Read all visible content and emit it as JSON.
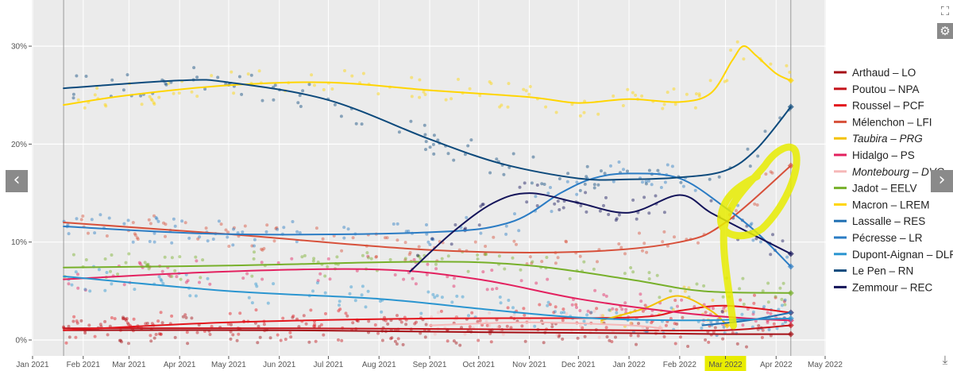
{
  "chart_data": {
    "type": "line",
    "title": "",
    "xlabel": "",
    "ylabel": "",
    "ylim": [
      0,
      33
    ],
    "x_range": [
      "2021-01-01",
      "2022-05-01"
    ],
    "grid": true,
    "legend_position": "right",
    "x_ticks": [
      "Jan 2021",
      "Feb 2021",
      "Mar 2021",
      "Apr 2021",
      "May 2021",
      "Jun 2021",
      "Jul 2021",
      "Aug 2021",
      "Sep 2021",
      "Oct 2021",
      "Nov 2021",
      "Dec 2021",
      "Jan 2022",
      "Feb 2022",
      "Mar 2022",
      "Apr 2022",
      "May 2022"
    ],
    "y_ticks": [
      0,
      10,
      20,
      30
    ],
    "y_tick_labels": [
      "0%",
      "10%",
      "20%",
      "30%"
    ],
    "reference_lines": [
      "2021-01-20",
      "2022-04-10"
    ],
    "series": [
      {
        "name": "Arthaud – LO",
        "color": "#a50f15",
        "italic": false,
        "points": [
          [
            "2021-01-20",
            1.0
          ],
          [
            "2021-06-01",
            1.0
          ],
          [
            "2021-10-01",
            0.8
          ],
          [
            "2022-01-01",
            0.7
          ],
          [
            "2022-03-01",
            0.6
          ],
          [
            "2022-04-10",
            0.6
          ]
        ]
      },
      {
        "name": "Poutou – NPA",
        "color": "#c4141b",
        "italic": false,
        "points": [
          [
            "2021-01-20",
            1.2
          ],
          [
            "2021-06-01",
            1.2
          ],
          [
            "2021-10-01",
            1.1
          ],
          [
            "2022-01-01",
            1.0
          ],
          [
            "2022-03-01",
            1.0
          ],
          [
            "2022-04-10",
            1.5
          ]
        ]
      },
      {
        "name": "Roussel – PCF",
        "color": "#e3161d",
        "italic": false,
        "points": [
          [
            "2021-01-20",
            1.0
          ],
          [
            "2021-05-01",
            1.8
          ],
          [
            "2021-09-01",
            2.2
          ],
          [
            "2022-01-01",
            2.3
          ],
          [
            "2022-02-01",
            3.0
          ],
          [
            "2022-03-01",
            3.5
          ],
          [
            "2022-04-10",
            2.8
          ]
        ]
      },
      {
        "name": "Mélenchon – LFI",
        "color": "#d7503a",
        "italic": false,
        "points": [
          [
            "2021-01-20",
            12.0
          ],
          [
            "2021-05-01",
            10.8
          ],
          [
            "2021-09-01",
            9.2
          ],
          [
            "2021-12-01",
            9.0
          ],
          [
            "2022-02-01",
            10.0
          ],
          [
            "2022-03-01",
            12.0
          ],
          [
            "2022-04-10",
            17.8
          ]
        ]
      },
      {
        "name": "Taubira – PRG",
        "color": "#f3c200",
        "italic": true,
        "points": [
          [
            "2021-12-15",
            2.0
          ],
          [
            "2022-01-10",
            3.2
          ],
          [
            "2022-01-31",
            4.5
          ],
          [
            "2022-02-20",
            3.0
          ],
          [
            "2022-03-02",
            1.5
          ]
        ]
      },
      {
        "name": "Hidalgo – PS",
        "color": "#e3215f",
        "italic": false,
        "points": [
          [
            "2021-01-20",
            6.2
          ],
          [
            "2021-05-01",
            7.0
          ],
          [
            "2021-08-01",
            7.2
          ],
          [
            "2021-10-01",
            6.2
          ],
          [
            "2021-12-01",
            4.2
          ],
          [
            "2022-02-01",
            2.8
          ],
          [
            "2022-03-15",
            2.2
          ],
          [
            "2022-04-10",
            2.0
          ]
        ]
      },
      {
        "name": "Montebourg – DVG",
        "color": "#f6b8b8",
        "italic": true,
        "points": [
          [
            "2021-09-01",
            1.5
          ],
          [
            "2021-11-01",
            1.8
          ],
          [
            "2022-01-01",
            1.5
          ],
          [
            "2022-01-20",
            1.2
          ]
        ]
      },
      {
        "name": "Jadot – EELV",
        "color": "#77b02a",
        "italic": false,
        "points": [
          [
            "2021-01-20",
            7.4
          ],
          [
            "2021-05-01",
            7.6
          ],
          [
            "2021-09-01",
            8.0
          ],
          [
            "2021-11-01",
            7.6
          ],
          [
            "2022-01-01",
            6.2
          ],
          [
            "2022-02-15",
            5.0
          ],
          [
            "2022-04-10",
            4.8
          ]
        ]
      },
      {
        "name": "Macron – LREM",
        "color": "#ffd500",
        "italic": false,
        "points": [
          [
            "2021-01-20",
            24.0
          ],
          [
            "2021-03-01",
            25.0
          ],
          [
            "2021-05-01",
            26.0
          ],
          [
            "2021-07-01",
            26.3
          ],
          [
            "2021-09-01",
            25.5
          ],
          [
            "2021-11-01",
            24.8
          ],
          [
            "2021-12-01",
            24.2
          ],
          [
            "2022-01-01",
            24.6
          ],
          [
            "2022-02-01",
            24.3
          ],
          [
            "2022-02-20",
            25.2
          ],
          [
            "2022-03-05",
            28.5
          ],
          [
            "2022-03-12",
            30.0
          ],
          [
            "2022-03-20",
            29.0
          ],
          [
            "2022-04-01",
            27.2
          ],
          [
            "2022-04-10",
            26.5
          ]
        ]
      },
      {
        "name": "Lassalle – RES",
        "color": "#1f6fb2",
        "italic": false,
        "points": [
          [
            "2022-02-15",
            1.5
          ],
          [
            "2022-03-15",
            2.0
          ],
          [
            "2022-04-10",
            2.8
          ]
        ]
      },
      {
        "name": "Pécresse – LR",
        "color": "#2b7cc4",
        "italic": false,
        "points": [
          [
            "2021-01-20",
            11.6
          ],
          [
            "2021-05-01",
            10.8
          ],
          [
            "2021-09-01",
            11.0
          ],
          [
            "2021-10-20",
            12.0
          ],
          [
            "2021-11-20",
            15.0
          ],
          [
            "2021-12-10",
            16.5
          ],
          [
            "2022-01-01",
            17.0
          ],
          [
            "2022-02-01",
            16.5
          ],
          [
            "2022-03-01",
            13.5
          ],
          [
            "2022-03-20",
            11.0
          ],
          [
            "2022-04-10",
            7.5
          ]
        ]
      },
      {
        "name": "Dupont-Aignan – DLF",
        "color": "#2a95d0",
        "italic": false,
        "points": [
          [
            "2021-01-20",
            6.5
          ],
          [
            "2021-05-01",
            5.0
          ],
          [
            "2021-08-01",
            4.2
          ],
          [
            "2021-10-01",
            3.2
          ],
          [
            "2021-12-01",
            2.3
          ],
          [
            "2022-02-01",
            2.0
          ],
          [
            "2022-04-10",
            2.2
          ]
        ]
      },
      {
        "name": "Le Pen – RN",
        "color": "#0d4a7c",
        "italic": false,
        "points": [
          [
            "2021-01-20",
            25.7
          ],
          [
            "2021-04-01",
            26.5
          ],
          [
            "2021-05-01",
            26.3
          ],
          [
            "2021-07-01",
            24.5
          ],
          [
            "2021-09-01",
            20.5
          ],
          [
            "2021-10-15",
            18.0
          ],
          [
            "2021-12-01",
            16.5
          ],
          [
            "2022-01-01",
            16.4
          ],
          [
            "2022-02-01",
            16.6
          ],
          [
            "2022-03-01",
            17.3
          ],
          [
            "2022-03-20",
            19.5
          ],
          [
            "2022-04-10",
            23.8
          ]
        ]
      },
      {
        "name": "Zemmour – REC",
        "color": "#14145a",
        "italic": false,
        "points": [
          [
            "2021-08-20",
            7.0
          ],
          [
            "2021-09-15",
            11.0
          ],
          [
            "2021-10-10",
            14.0
          ],
          [
            "2021-11-01",
            15.0
          ],
          [
            "2021-12-01",
            14.0
          ],
          [
            "2022-01-01",
            13.0
          ],
          [
            "2022-02-01",
            14.8
          ],
          [
            "2022-02-20",
            13.0
          ],
          [
            "2022-03-15",
            11.0
          ],
          [
            "2022-04-10",
            8.8
          ]
        ]
      }
    ]
  },
  "legend": {
    "items": [
      {
        "label": "Arthaud – LO",
        "color": "#a50f15",
        "italic": false
      },
      {
        "label": "Poutou – NPA",
        "color": "#c4141b",
        "italic": false
      },
      {
        "label": "Roussel – PCF",
        "color": "#e3161d",
        "italic": false
      },
      {
        "label": "Mélenchon – LFI",
        "color": "#d7503a",
        "italic": false
      },
      {
        "label": "Taubira – PRG",
        "color": "#f3c200",
        "italic": true
      },
      {
        "label": "Hidalgo – PS",
        "color": "#e3215f",
        "italic": false
      },
      {
        "label": "Montebourg – DVG",
        "color": "#f6b8b8",
        "italic": true
      },
      {
        "label": "Jadot – EELV",
        "color": "#77b02a",
        "italic": false
      },
      {
        "label": "Macron – LREM",
        "color": "#ffd500",
        "italic": false
      },
      {
        "label": "Lassalle – RES",
        "color": "#1f6fb2",
        "italic": false
      },
      {
        "label": "Pécresse – LR",
        "color": "#2b7cc4",
        "italic": false
      },
      {
        "label": "Dupont-Aignan – DLF",
        "color": "#2a95d0",
        "italic": false
      },
      {
        "label": "Le Pen – RN",
        "color": "#0d4a7c",
        "italic": false
      },
      {
        "label": "Zemmour – REC",
        "color": "#14145a",
        "italic": false
      }
    ]
  },
  "annotation": {
    "highlighted_tick": "Mar 2022",
    "marker_color": "#e8ec00"
  },
  "controls": {
    "prev_icon": "chevron-left-icon",
    "prev_glyph": "‹",
    "next_icon": "chevron-right-icon",
    "next_glyph": "›",
    "fullscreen_icon": "fullscreen-icon",
    "fullscreen_glyph": "⛶",
    "settings_icon": "gear-icon",
    "settings_glyph": "⚙",
    "download_icon": "download-icon",
    "download_glyph": "⤓"
  },
  "colors": {
    "panel_bg": "#ebebeb",
    "grid": "#ffffff",
    "page_bg": "#ffffff"
  }
}
